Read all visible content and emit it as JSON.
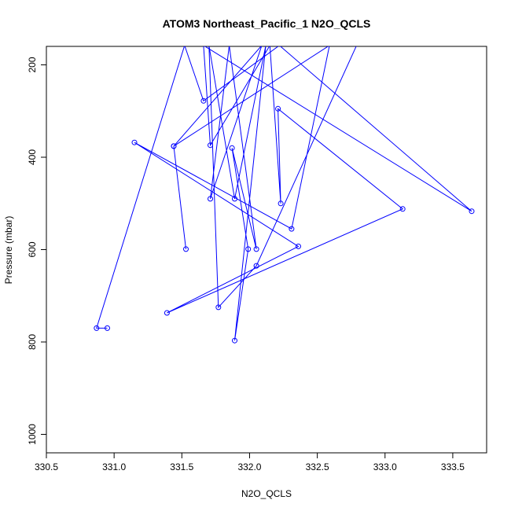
{
  "chart_data": {
    "type": "scatter",
    "title": "ATOM3 Northeast_Pacific_1 N2O_QCLS",
    "xlabel": "N2O_QCLS",
    "ylabel": "Pressure (mbar)",
    "xlim": [
      330.5,
      333.75
    ],
    "ylim": [
      1040,
      160
    ],
    "y_reversed": true,
    "x_ticks": [
      330.5,
      331.0,
      331.5,
      332.0,
      332.5,
      333.0,
      333.5
    ],
    "x_tick_labels": [
      "330.5",
      "331.0",
      "331.5",
      "332.0",
      "332.5",
      "333.0",
      "333.5"
    ],
    "y_ticks": [
      200,
      400,
      600,
      800,
      1000
    ],
    "y_tick_labels": [
      "200",
      "400",
      "600",
      "800",
      "1000"
    ],
    "line_color": "#0000ff",
    "marker": "open-circle",
    "grid": false,
    "series": [
      {
        "points": [
          {
            "x": 330.95,
            "y": 770
          },
          {
            "x": 330.87,
            "y": 770
          },
          {
            "x": 331.52,
            "y": 158
          },
          {
            "x": 331.66,
            "y": 278
          },
          {
            "x": 332.22,
            "y": 158
          },
          {
            "x": 333.64,
            "y": 517
          },
          {
            "x": 331.66,
            "y": 158
          },
          {
            "x": 331.71,
            "y": 374
          },
          {
            "x": 332.15,
            "y": 158
          },
          {
            "x": 332.23,
            "y": 500
          },
          {
            "x": 332.21,
            "y": 295
          },
          {
            "x": 333.13,
            "y": 512
          },
          {
            "x": 331.39,
            "y": 737
          },
          {
            "x": 332.36,
            "y": 593
          },
          {
            "x": 331.15,
            "y": 368
          },
          {
            "x": 332.31,
            "y": 555
          },
          {
            "x": 332.59,
            "y": 158
          },
          {
            "x": 331.44,
            "y": 376
          },
          {
            "x": 331.53,
            "y": 599
          },
          {
            "x": 331.44,
            "y": 376
          },
          {
            "x": 332.09,
            "y": 158
          },
          {
            "x": 331.71,
            "y": 490
          },
          {
            "x": 331.85,
            "y": 158
          },
          {
            "x": 332.05,
            "y": 599
          },
          {
            "x": 331.87,
            "y": 380
          },
          {
            "x": 331.99,
            "y": 599
          },
          {
            "x": 331.89,
            "y": 797
          },
          {
            "x": 332.12,
            "y": 158
          },
          {
            "x": 331.89,
            "y": 490
          },
          {
            "x": 331.7,
            "y": 158
          },
          {
            "x": 331.77,
            "y": 725
          },
          {
            "x": 332.05,
            "y": 635
          },
          {
            "x": 332.79,
            "y": 158
          }
        ]
      }
    ]
  }
}
